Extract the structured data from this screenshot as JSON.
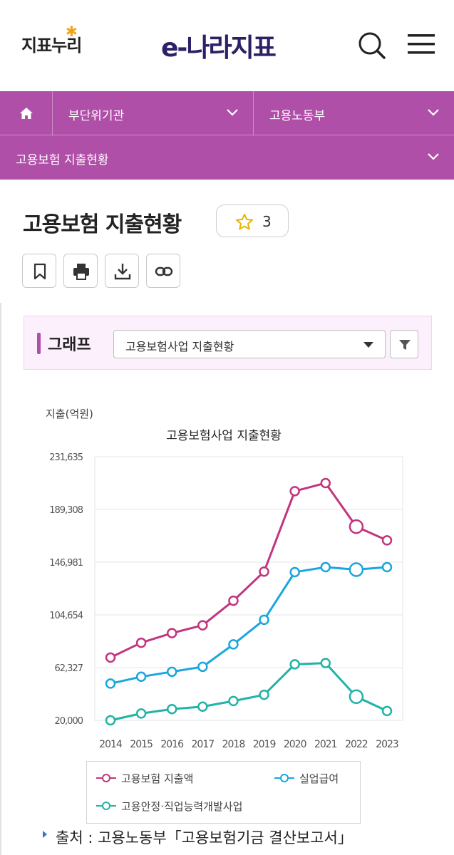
{
  "header": {
    "logo_left": "지표누리",
    "logo_main": "e-나라지표"
  },
  "breadcrumb": {
    "item1": "부단위기관",
    "item2": "고용노동부",
    "item3": "고용보험 지출현황"
  },
  "page": {
    "title": "고용보험 지출현황",
    "favorite_count": "3"
  },
  "graph_panel": {
    "label": "그래프",
    "select_value": "고용보험사업 지출현황"
  },
  "chart_data": {
    "type": "line",
    "title": "고용보험사업 지출현황",
    "ylabel": "지출(억원)",
    "xlabel": "",
    "ylim": [
      20000,
      231635
    ],
    "yticks": [
      "231,635",
      "189,308",
      "146,981",
      "104,654",
      "62,327",
      "20,000"
    ],
    "ytick_values": [
      231635,
      189308,
      146981,
      104654,
      62327,
      20000
    ],
    "x": [
      "2014",
      "2015",
      "2016",
      "2017",
      "2018",
      "2019",
      "2020",
      "2021",
      "2022",
      "2023"
    ],
    "grid": true,
    "legend": "bottom",
    "series": [
      {
        "name": "고용보험 지출액",
        "color": "#c2357f",
        "values": [
          70400,
          82300,
          90000,
          96300,
          116000,
          139400,
          204000,
          210500,
          175500,
          164500
        ]
      },
      {
        "name": "실업급여",
        "color": "#1aa6de",
        "values": [
          49500,
          55000,
          59000,
          63000,
          81000,
          100700,
          139000,
          143000,
          141000,
          143000
        ]
      },
      {
        "name": "고용안정·직업능력개발사업",
        "color": "#20b3a6",
        "values": [
          20000,
          25500,
          29000,
          31000,
          35500,
          40500,
          65000,
          66000,
          39000,
          27500
        ]
      }
    ]
  },
  "source": {
    "text": "출처 : 고용노동부「고용보험기금 결산보고서」"
  }
}
